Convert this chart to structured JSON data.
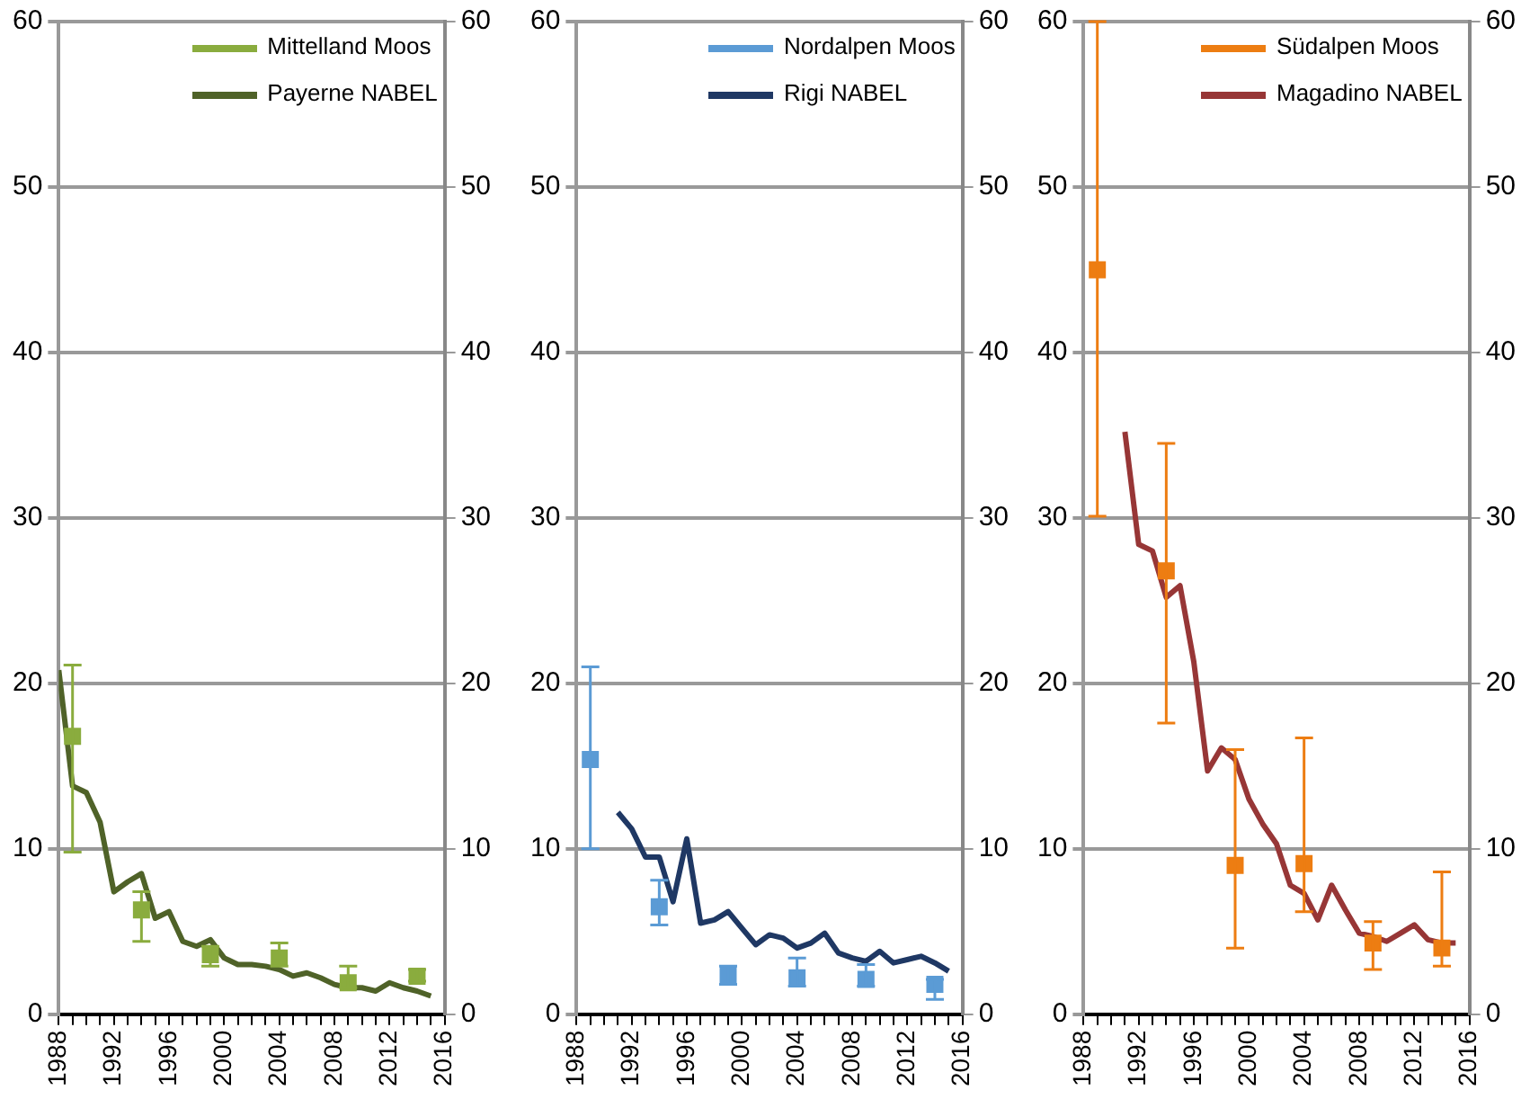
{
  "chart_data": [
    {
      "type": "line",
      "xlim": [
        1988,
        2016
      ],
      "xticks": [
        1988,
        {
          "value": 1989,
          "label": null
        },
        {
          "value": 1990,
          "label": null
        },
        {
          "value": 1991,
          "label": null
        },
        1992,
        {
          "value": 1993,
          "label": null
        },
        {
          "value": 1994,
          "label": null
        },
        {
          "value": 1995,
          "label": null
        },
        1996,
        {
          "value": 1997,
          "label": null
        },
        {
          "value": 1998,
          "label": null
        },
        {
          "value": 1999,
          "label": null
        },
        2000,
        {
          "value": 2001,
          "label": null
        },
        {
          "value": 2002,
          "label": null
        },
        {
          "value": 2003,
          "label": null
        },
        2004,
        {
          "value": 2005,
          "label": null
        },
        {
          "value": 2006,
          "label": null
        },
        {
          "value": 2007,
          "label": null
        },
        2008,
        {
          "value": 2009,
          "label": null
        },
        {
          "value": 2010,
          "label": null
        },
        {
          "value": 2011,
          "label": null
        },
        2012,
        {
          "value": 2013,
          "label": null
        },
        {
          "value": 2014,
          "label": null
        },
        {
          "value": 2015,
          "label": null
        },
        2016
      ],
      "ylim": [
        0,
        60
      ],
      "yticks": [
        0,
        10,
        20,
        30,
        40,
        50,
        60
      ],
      "y2lim": [
        0,
        60
      ],
      "y2ticks": [
        0,
        10,
        20,
        30,
        40,
        50,
        60
      ],
      "grid": "y",
      "legend": "top right",
      "series": [
        {
          "name": "Mittelland Moos",
          "type": "scatter",
          "marker": "square",
          "color": "#8aac3e",
          "x": [
            1989,
            1994,
            1999,
            2004,
            2009,
            2014
          ],
          "values": [
            16.8,
            6.3,
            3.6,
            3.4,
            1.9,
            2.3
          ],
          "errors": [
            [
              9.8,
              21.1
            ],
            [
              4.4,
              7.4
            ],
            [
              2.9,
              4.1
            ],
            [
              2.9,
              4.3
            ],
            [
              1.6,
              2.9
            ],
            [
              2.0,
              2.7
            ]
          ]
        },
        {
          "name": "Payerne NABEL",
          "type": "line",
          "marker": "none",
          "color": "#4f6228",
          "x": [
            1988,
            1989,
            1990,
            1991,
            1992,
            1993,
            1994,
            1995,
            1996,
            1997,
            1998,
            1999,
            2000,
            2001,
            2002,
            2003,
            2004,
            2005,
            2006,
            2007,
            2008,
            2009,
            2010,
            2011,
            2012,
            2013,
            2014,
            2015
          ],
          "values": [
            20.8,
            13.8,
            13.4,
            11.6,
            7.4,
            8.0,
            8.5,
            5.8,
            6.2,
            4.4,
            4.1,
            4.5,
            3.4,
            3.0,
            3.0,
            2.9,
            2.7,
            2.3,
            2.5,
            2.2,
            1.8,
            1.6,
            1.6,
            1.4,
            1.9,
            1.6,
            1.4,
            1.1
          ]
        }
      ]
    },
    {
      "type": "line",
      "xlim": [
        1988,
        2016
      ],
      "xticks": [
        1988,
        {
          "value": 1989,
          "label": null
        },
        {
          "value": 1990,
          "label": null
        },
        {
          "value": 1991,
          "label": null
        },
        1992,
        {
          "value": 1993,
          "label": null
        },
        {
          "value": 1994,
          "label": null
        },
        {
          "value": 1995,
          "label": null
        },
        1996,
        {
          "value": 1997,
          "label": null
        },
        {
          "value": 1998,
          "label": null
        },
        {
          "value": 1999,
          "label": null
        },
        2000,
        {
          "value": 2001,
          "label": null
        },
        {
          "value": 2002,
          "label": null
        },
        {
          "value": 2003,
          "label": null
        },
        2004,
        {
          "value": 2005,
          "label": null
        },
        {
          "value": 2006,
          "label": null
        },
        {
          "value": 2007,
          "label": null
        },
        2008,
        {
          "value": 2009,
          "label": null
        },
        {
          "value": 2010,
          "label": null
        },
        {
          "value": 2011,
          "label": null
        },
        2012,
        {
          "value": 2013,
          "label": null
        },
        {
          "value": 2014,
          "label": null
        },
        {
          "value": 2015,
          "label": null
        },
        2016
      ],
      "ylim": [
        0,
        60
      ],
      "yticks": [
        0,
        10,
        20,
        30,
        40,
        50,
        60
      ],
      "y2lim": [
        0,
        60
      ],
      "y2ticks": [
        0,
        10,
        20,
        30,
        40,
        50,
        60
      ],
      "grid": "y",
      "legend": "top right",
      "series": [
        {
          "name": "Nordalpen Moos",
          "type": "scatter",
          "marker": "square",
          "color": "#5b9bd5",
          "x": [
            1989,
            1994,
            1999,
            2004,
            2009,
            2014
          ],
          "values": [
            15.4,
            6.5,
            2.4,
            2.2,
            2.1,
            1.8
          ],
          "errors": [
            [
              10.0,
              21.0
            ],
            [
              5.4,
              8.1
            ],
            [
              1.8,
              2.9
            ],
            [
              1.7,
              3.4
            ],
            [
              1.7,
              3.0
            ],
            [
              0.9,
              2.1
            ]
          ]
        },
        {
          "name": "Rigi NABEL",
          "type": "line",
          "marker": "none",
          "color": "#1f3864",
          "x": [
            1991,
            1992,
            1993,
            1994,
            1995,
            1996,
            1997,
            1998,
            1999,
            2000,
            2001,
            2002,
            2003,
            2004,
            2005,
            2006,
            2007,
            2008,
            2009,
            2010,
            2011,
            2012,
            2013,
            2014,
            2015
          ],
          "values": [
            12.2,
            11.2,
            9.5,
            9.5,
            6.8,
            10.6,
            5.5,
            5.7,
            6.2,
            5.2,
            4.2,
            4.8,
            4.6,
            4.0,
            4.3,
            4.9,
            3.7,
            3.4,
            3.2,
            3.8,
            3.1,
            3.3,
            3.5,
            3.1,
            2.6
          ]
        }
      ]
    },
    {
      "type": "line",
      "xlim": [
        1988,
        2016
      ],
      "xticks": [
        1988,
        {
          "value": 1989,
          "label": null
        },
        {
          "value": 1990,
          "label": null
        },
        {
          "value": 1991,
          "label": null
        },
        1992,
        {
          "value": 1993,
          "label": null
        },
        {
          "value": 1994,
          "label": null
        },
        {
          "value": 1995,
          "label": null
        },
        1996,
        {
          "value": 1997,
          "label": null
        },
        {
          "value": 1998,
          "label": null
        },
        {
          "value": 1999,
          "label": null
        },
        2000,
        {
          "value": 2001,
          "label": null
        },
        {
          "value": 2002,
          "label": null
        },
        {
          "value": 2003,
          "label": null
        },
        2004,
        {
          "value": 2005,
          "label": null
        },
        {
          "value": 2006,
          "label": null
        },
        {
          "value": 2007,
          "label": null
        },
        2008,
        {
          "value": 2009,
          "label": null
        },
        {
          "value": 2010,
          "label": null
        },
        {
          "value": 2011,
          "label": null
        },
        2012,
        {
          "value": 2013,
          "label": null
        },
        {
          "value": 2014,
          "label": null
        },
        {
          "value": 2015,
          "label": null
        },
        2016
      ],
      "ylim": [
        0,
        60
      ],
      "yticks": [
        0,
        10,
        20,
        30,
        40,
        50,
        60
      ],
      "y2lim": [
        0,
        60
      ],
      "y2ticks": [
        0,
        10,
        20,
        30,
        40,
        50,
        60
      ],
      "grid": "y",
      "legend": "top right",
      "series": [
        {
          "name": "Südalpen Moos",
          "type": "scatter",
          "marker": "square",
          "color": "#ed7d12",
          "x": [
            1989,
            1994,
            1999,
            2004,
            2009,
            2014
          ],
          "values": [
            45.0,
            26.8,
            9.0,
            9.1,
            4.3,
            4.0
          ],
          "errors": [
            [
              30.1,
              60
            ],
            [
              17.6,
              34.5
            ],
            [
              4.0,
              16.0
            ],
            [
              6.2,
              16.7
            ],
            [
              2.7,
              5.6
            ],
            [
              2.9,
              8.6
            ]
          ]
        },
        {
          "name": "Magadino NABEL",
          "type": "line",
          "marker": "none",
          "color": "#973636",
          "x": [
            1991,
            1992,
            1993,
            1994,
            1995,
            1996,
            1997,
            1998,
            1999,
            2000,
            2001,
            2002,
            2003,
            2004,
            2005,
            2006,
            2007,
            2008,
            2009,
            2010,
            2011,
            2012,
            2013,
            2014,
            2015
          ],
          "values": [
            35.2,
            28.4,
            28.0,
            25.2,
            25.9,
            21.3,
            14.7,
            16.1,
            15.4,
            13.0,
            11.5,
            10.3,
            7.8,
            7.3,
            5.7,
            7.8,
            6.3,
            4.9,
            4.7,
            4.4,
            4.9,
            5.4,
            4.5,
            4.3,
            4.3
          ]
        }
      ]
    }
  ]
}
